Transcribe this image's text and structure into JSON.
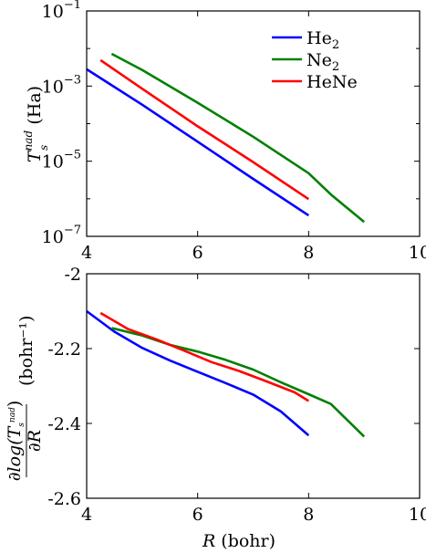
{
  "chart_data": [
    {
      "type": "line",
      "panel": "top",
      "ylabel_base": "T",
      "ylabel_sub": "s",
      "ylabel_sup": "nad",
      "ylabel_unit": "(Ha)",
      "xlim": [
        4,
        10
      ],
      "ylim": [
        1e-07,
        0.1
      ],
      "yscale": "log",
      "xticks": [
        4,
        6,
        8,
        10
      ],
      "xtick_labels": [
        "4",
        "6",
        "8",
        "10"
      ],
      "yticks": [
        1e-07,
        1e-05,
        0.001,
        0.1
      ],
      "ytick_labels": [
        {
          "base": "10",
          "exp": "−7"
        },
        {
          "base": "10",
          "exp": "−5"
        },
        {
          "base": "10",
          "exp": "−3"
        },
        {
          "base": "10",
          "exp": "−1"
        }
      ],
      "legend_position": "top-right",
      "series": [
        {
          "name": "He",
          "name_sub": "2",
          "color": "#0000ff",
          "x": [
            4.0,
            5.0,
            6.0,
            7.0,
            8.0
          ],
          "y": [
            0.0028,
            0.00032,
            3.3e-05,
            3.4e-06,
            3.6e-07
          ]
        },
        {
          "name": "Ne",
          "name_sub": "2",
          "color": "#008000",
          "x": [
            4.45,
            5.0,
            6.0,
            7.0,
            8.0,
            8.4,
            9.0
          ],
          "y": [
            0.0072,
            0.0027,
            0.00036,
            4.5e-05,
            4.8e-06,
            1.3e-06,
            2.4e-07
          ]
        },
        {
          "name": "HeNe",
          "name_sub": "",
          "color": "#ff0000",
          "x": [
            4.25,
            5.0,
            6.0,
            7.0,
            8.0
          ],
          "y": [
            0.0049,
            0.00085,
            8.5e-05,
            9.5e-06,
            9.8e-07
          ]
        }
      ]
    },
    {
      "type": "line",
      "panel": "bottom",
      "ylabel_fraction": "∂log(T_s^nad) / ∂R",
      "ylabel_unit": "(bohr⁻¹)",
      "xlabel": "R",
      "xlabel_unit": "(bohr)",
      "xlim": [
        4,
        10
      ],
      "ylim": [
        -2.6,
        -2.0
      ],
      "xticks": [
        4,
        6,
        8,
        10
      ],
      "xtick_labels": [
        "4",
        "6",
        "8",
        "10"
      ],
      "yticks": [
        -2.6,
        -2.4,
        -2.2,
        -2.0
      ],
      "ytick_labels": [
        "-2.6",
        "-2.4",
        "-2.2",
        "-2"
      ],
      "series": [
        {
          "name": "He2",
          "color": "#0000ff",
          "x": [
            4.0,
            4.5,
            5.0,
            5.5,
            6.0,
            6.5,
            7.0,
            7.5,
            8.0
          ],
          "y": [
            -2.1,
            -2.155,
            -2.198,
            -2.232,
            -2.262,
            -2.292,
            -2.323,
            -2.368,
            -2.432
          ]
        },
        {
          "name": "Ne2",
          "color": "#008000",
          "x": [
            4.45,
            5.0,
            5.5,
            6.0,
            6.5,
            7.0,
            7.5,
            8.0,
            8.4,
            9.0
          ],
          "y": [
            -2.145,
            -2.165,
            -2.19,
            -2.208,
            -2.23,
            -2.256,
            -2.29,
            -2.322,
            -2.348,
            -2.435
          ]
        },
        {
          "name": "HeNe",
          "color": "#ff0000",
          "x": [
            4.25,
            4.75,
            5.25,
            5.75,
            6.25,
            6.75,
            7.25,
            7.75,
            8.0
          ],
          "y": [
            -2.105,
            -2.148,
            -2.175,
            -2.205,
            -2.236,
            -2.26,
            -2.288,
            -2.317,
            -2.34
          ]
        }
      ]
    }
  ]
}
